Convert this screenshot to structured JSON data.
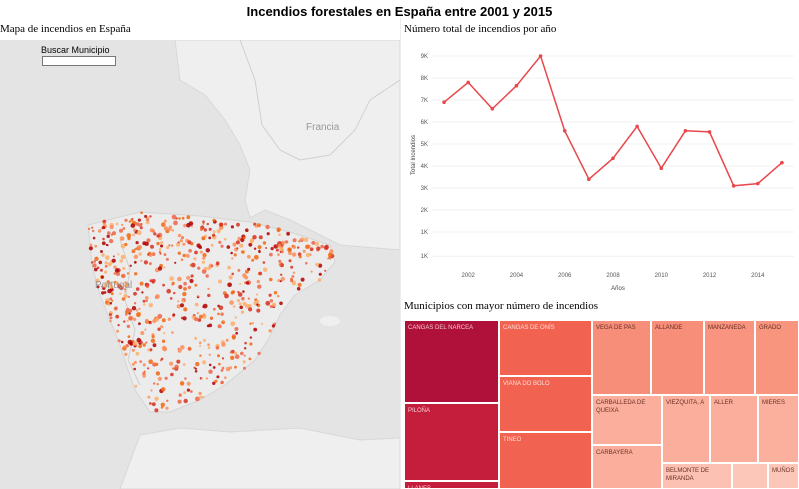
{
  "page_title": "Incendios forestales en España entre 2001 y 2015",
  "map_panel": {
    "title": "Mapa de incendios en España",
    "search_label": "Buscar Municipio",
    "search_value": "",
    "country_labels": [
      "Francia",
      "Portugal"
    ]
  },
  "line_panel": {
    "title": "Número total de incendios por año"
  },
  "treemap_panel": {
    "title": "Municipios con mayor número de incendios"
  },
  "colors": {
    "line": "#e8474c",
    "treemap_dark": "#b0113a",
    "map_land": "#ededed",
    "map_sea": "#e4e4e4"
  },
  "chart_data": {
    "type": "line",
    "x": [
      2001,
      2002,
      2003,
      2004,
      2005,
      2006,
      2007,
      2008,
      2009,
      2010,
      2011,
      2012,
      2013,
      2014,
      2015
    ],
    "values": [
      6900,
      7800,
      6600,
      7650,
      9000,
      5600,
      3400,
      4350,
      5800,
      3900,
      5600,
      5550,
      3100,
      3200,
      4150
    ],
    "xticks": [
      "2002",
      "2004",
      "2006",
      "2008",
      "2010",
      "2012",
      "2014"
    ],
    "yticks": [
      "1K",
      "1K",
      "2K",
      "3K",
      "4K",
      "5K",
      "6K",
      "7K",
      "8K",
      "9K"
    ],
    "xlabel": "Años",
    "ylabel": "Total Incendios",
    "ylim": [
      -500,
      9500
    ],
    "grid": true
  },
  "treemap_cells": [
    {
      "label": "CANGAS DEL NARCEA"
    },
    {
      "label": "PILOÑA"
    },
    {
      "label": "LLANES"
    },
    {
      "label": "CANGAS DE ONÍS"
    },
    {
      "label": "VIANA DO BOLO"
    },
    {
      "label": "TINEO"
    },
    {
      "label": "VEGA DE PAS"
    },
    {
      "label": "ALLANDE"
    },
    {
      "label": "MANZANEDA"
    },
    {
      "label": "GRADO"
    },
    {
      "label": "CARBALLEDA DE QUEIXA"
    },
    {
      "label": "VIEZQUITA, A"
    },
    {
      "label": "ALLER"
    },
    {
      "label": "MIERES"
    },
    {
      "label": "CARBAYERA"
    },
    {
      "label": "BELMONTE DE MIRANDA"
    },
    {
      "label": ""
    },
    {
      "label": "MUÑOS"
    }
  ]
}
